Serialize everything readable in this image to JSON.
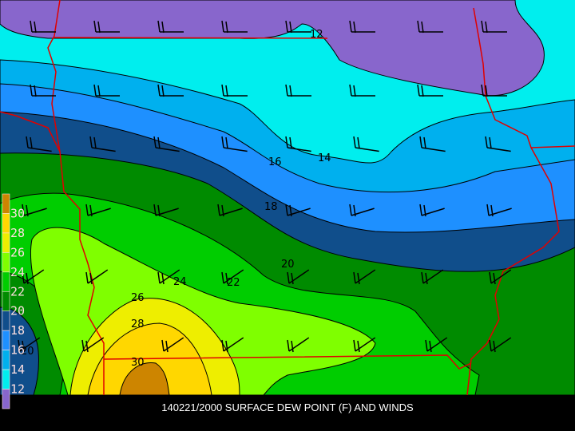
{
  "title": "140221/2000 SURFACE DEW POINT (F) AND WINDS",
  "legend": {
    "labels": [
      "30",
      "28",
      "26",
      "24",
      "22",
      "20",
      "18",
      "16",
      "14",
      "12"
    ],
    "colors": [
      "#cd8500",
      "#ffd700",
      "#eeee00",
      "#7fff00",
      "#00cd00",
      "#008b00",
      "#104e8b",
      "#1e90ff",
      "#00b0ee",
      "#00eeee",
      "#8866cc"
    ]
  },
  "contour_labels": [
    "12",
    "14",
    "16",
    "18",
    "20",
    "22",
    "24",
    "26",
    "28",
    "30",
    "20"
  ],
  "colors": {
    "border": "#e00000",
    "contour": "#000000",
    "barb": "#000000"
  }
}
